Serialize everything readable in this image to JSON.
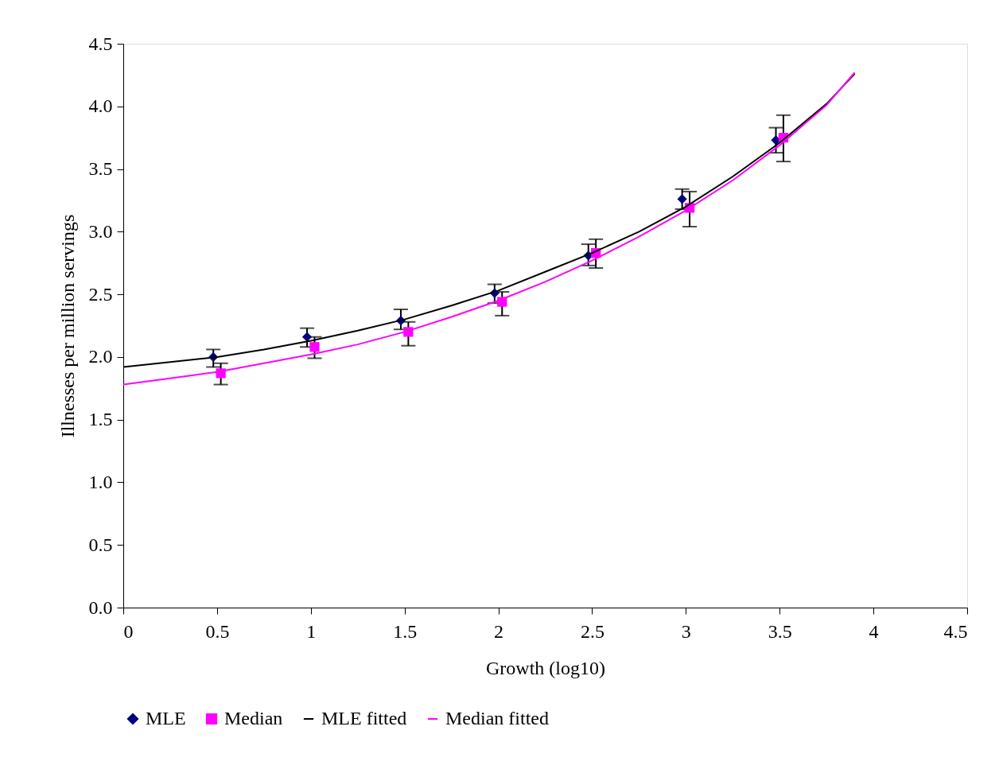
{
  "chart_data": {
    "type": "scatter",
    "xlabel": "Growth (log10)",
    "ylabel": "Illnesses per million servings",
    "xlim": [
      0,
      4.5
    ],
    "ylim": [
      0,
      4.5
    ],
    "xticks": [
      0,
      0.5,
      1,
      1.5,
      2,
      2.5,
      3,
      3.5,
      4,
      4.5
    ],
    "yticks": [
      {
        "value": 0,
        "label": "0.0"
      },
      0.5,
      {
        "value": 1,
        "label": "1.0"
      },
      1.5,
      {
        "value": 2,
        "label": "2.0"
      },
      2.5,
      {
        "value": 3,
        "label": "3.0"
      },
      3.5,
      {
        "value": 4,
        "label": "4.0"
      },
      4.5
    ],
    "grid": false,
    "legend": "bottom",
    "series": [
      {
        "name": "MLE",
        "marker": "diamond",
        "color": "#000080",
        "x": [
          0.48,
          0.98,
          1.48,
          1.98,
          2.48,
          2.98,
          3.48
        ],
        "values": [
          2.0,
          2.16,
          2.29,
          2.51,
          2.81,
          3.26,
          3.73
        ],
        "errors": [
          [
            1.92,
            2.06
          ],
          [
            2.08,
            2.23
          ],
          [
            2.22,
            2.38
          ],
          [
            2.43,
            2.58
          ],
          [
            2.73,
            2.9
          ],
          [
            3.18,
            3.34
          ],
          [
            3.63,
            3.83
          ]
        ]
      },
      {
        "name": "Median",
        "marker": "square",
        "color": "#ff00ff",
        "x": [
          0.52,
          1.02,
          1.52,
          2.02,
          2.52,
          3.02,
          3.52
        ],
        "values": [
          1.87,
          2.08,
          2.2,
          2.44,
          2.83,
          3.19,
          3.75
        ],
        "errors": [
          [
            1.78,
            1.95
          ],
          [
            1.99,
            2.16
          ],
          [
            2.09,
            2.28
          ],
          [
            2.33,
            2.52
          ],
          [
            2.71,
            2.94
          ],
          [
            3.04,
            3.32
          ],
          [
            3.56,
            3.93
          ]
        ]
      },
      {
        "name": "MLE fitted",
        "type": "line",
        "line_style": "solid",
        "color": "#000000",
        "x": [
          0,
          0.25,
          0.5,
          0.75,
          1,
          1.25,
          1.5,
          1.75,
          2,
          2.25,
          2.5,
          2.75,
          3,
          3.25,
          3.5,
          3.75,
          3.9
        ],
        "values": [
          1.92,
          1.96,
          2.0,
          2.06,
          2.13,
          2.21,
          2.3,
          2.41,
          2.53,
          2.68,
          2.83,
          3.0,
          3.2,
          3.44,
          3.71,
          4.02,
          4.26
        ]
      },
      {
        "name": "Median fitted",
        "type": "line",
        "line_style": "solid",
        "color": "#ff00ff",
        "x": [
          0,
          0.25,
          0.5,
          0.75,
          1,
          1.25,
          1.5,
          1.75,
          2,
          2.25,
          2.5,
          2.75,
          3,
          3.25,
          3.5,
          3.75,
          3.9
        ],
        "values": [
          1.78,
          1.83,
          1.88,
          1.95,
          2.02,
          2.1,
          2.2,
          2.32,
          2.45,
          2.6,
          2.77,
          2.96,
          3.17,
          3.41,
          3.69,
          4.01,
          4.27
        ]
      }
    ]
  }
}
